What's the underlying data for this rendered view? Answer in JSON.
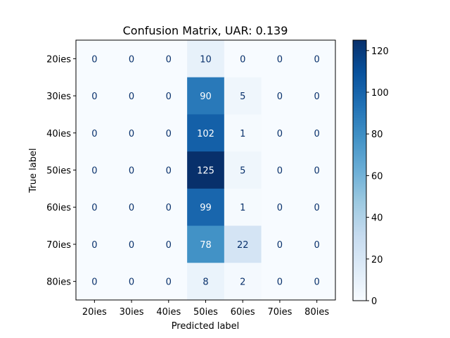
{
  "chart_data": {
    "type": "heatmap",
    "title": "Confusion Matrix, UAR: 0.139",
    "xlabel": "Predicted label",
    "ylabel": "True label",
    "x_categories": [
      "20ies",
      "30ies",
      "40ies",
      "50ies",
      "60ies",
      "70ies",
      "80ies"
    ],
    "y_categories": [
      "20ies",
      "30ies",
      "40ies",
      "50ies",
      "60ies",
      "70ies",
      "80ies"
    ],
    "values": [
      [
        0,
        0,
        0,
        10,
        0,
        0,
        0
      ],
      [
        0,
        0,
        0,
        90,
        5,
        0,
        0
      ],
      [
        0,
        0,
        0,
        102,
        1,
        0,
        0
      ],
      [
        0,
        0,
        0,
        125,
        5,
        0,
        0
      ],
      [
        0,
        0,
        0,
        99,
        1,
        0,
        0
      ],
      [
        0,
        0,
        0,
        78,
        22,
        0,
        0
      ],
      [
        0,
        0,
        0,
        8,
        2,
        0,
        0
      ]
    ],
    "colormap": "Blues",
    "colorbar": {
      "range": [
        0,
        125
      ],
      "ticks": [
        0,
        20,
        40,
        60,
        80,
        100,
        120
      ]
    },
    "grid": false
  }
}
